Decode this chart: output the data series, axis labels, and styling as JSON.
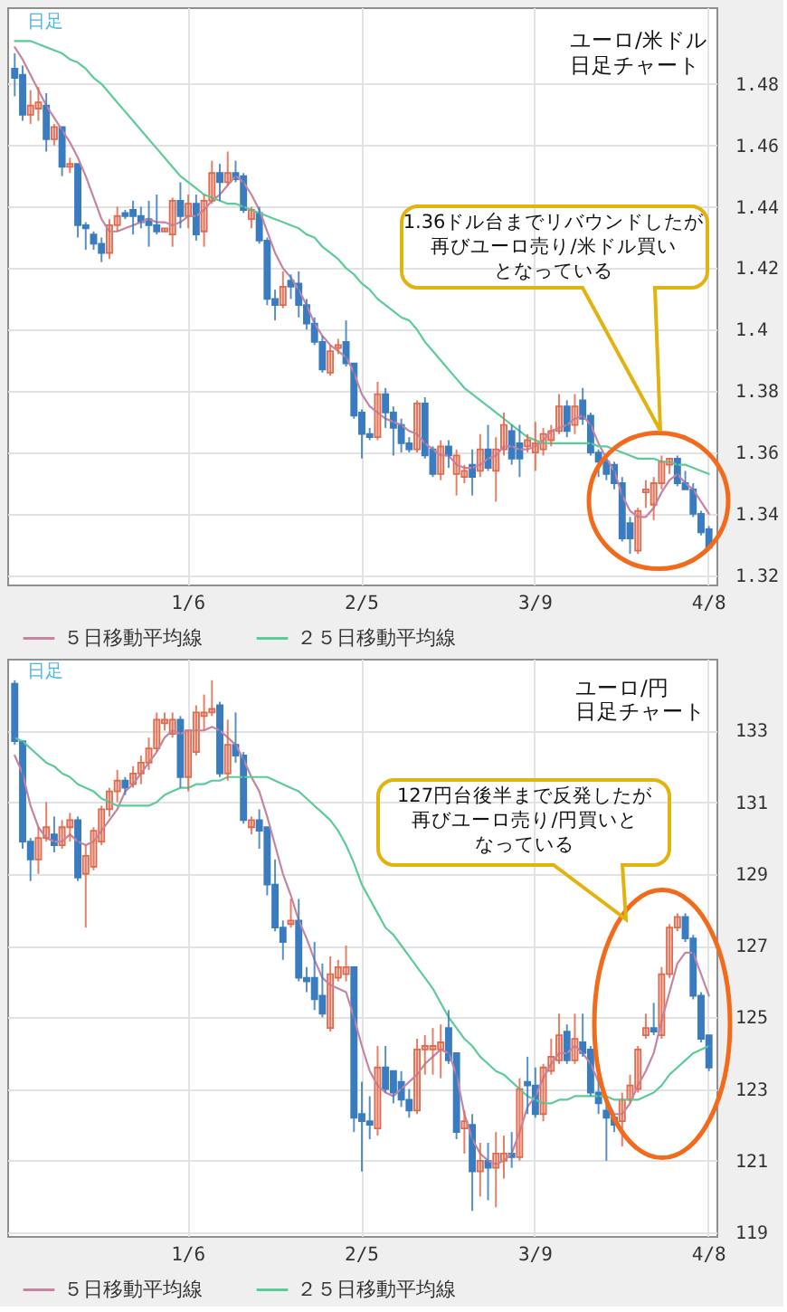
{
  "chart_data": [
    {
      "type": "candlestick",
      "title": "ユーロ/米ドル",
      "subtitle": "日足チャート",
      "categories": [
        null,
        null,
        null,
        null,
        null,
        null,
        null,
        null,
        null,
        null,
        null,
        null,
        null,
        null,
        null,
        null,
        null,
        null,
        null,
        null,
        null,
        null,
        "1/6",
        null,
        null,
        null,
        null,
        null,
        null,
        null,
        null,
        null,
        null,
        null,
        null,
        null,
        null,
        null,
        null,
        null,
        null,
        null,
        null,
        null,
        "2/5",
        null,
        null,
        null,
        null,
        null,
        null,
        null,
        null,
        null,
        null,
        null,
        null,
        null,
        null,
        null,
        null,
        null,
        null,
        null,
        null,
        null,
        "3/9",
        null,
        null,
        null,
        null,
        null,
        null,
        null,
        null,
        null,
        null,
        null,
        null,
        null,
        null,
        null,
        null,
        null,
        null,
        null,
        null,
        null,
        "4/8"
      ],
      "ohlc": [
        [
          1.485,
          1.49,
          1.476,
          1.482
        ],
        [
          1.483,
          1.486,
          1.468,
          1.47
        ],
        [
          1.47,
          1.478,
          1.467,
          1.473
        ],
        [
          1.472,
          1.479,
          1.468,
          1.474
        ],
        [
          1.473,
          1.477,
          1.458,
          1.462
        ],
        [
          1.462,
          1.467,
          1.46,
          1.466
        ],
        [
          1.466,
          1.466,
          1.45,
          1.453
        ],
        [
          1.453,
          1.456,
          1.451,
          1.454
        ],
        [
          1.454,
          1.454,
          1.43,
          1.434
        ],
        [
          1.434,
          1.435,
          1.426,
          1.433
        ],
        [
          1.431,
          1.432,
          1.426,
          1.428
        ],
        [
          1.428,
          1.43,
          1.422,
          1.425
        ],
        [
          1.425,
          1.436,
          1.423,
          1.434
        ],
        [
          1.434,
          1.44,
          1.432,
          1.437
        ],
        [
          1.438,
          1.439,
          1.436,
          1.437
        ],
        [
          1.439,
          1.442,
          1.431,
          1.437
        ],
        [
          1.437,
          1.44,
          1.433,
          1.435
        ],
        [
          1.436,
          1.442,
          1.427,
          1.434
        ],
        [
          1.434,
          1.444,
          1.431,
          1.432
        ],
        [
          1.432,
          1.433,
          1.432,
          1.433
        ],
        [
          1.431,
          1.443,
          1.427,
          1.442
        ],
        [
          1.442,
          1.448,
          1.433,
          1.437
        ],
        [
          1.437,
          1.444,
          1.433,
          1.441
        ],
        [
          1.441,
          1.444,
          1.429,
          1.431
        ],
        [
          1.432,
          1.444,
          1.427,
          1.442
        ],
        [
          1.442,
          1.455,
          1.441,
          1.451
        ],
        [
          1.451,
          1.454,
          1.442,
          1.448
        ],
        [
          1.448,
          1.458,
          1.447,
          1.451
        ],
        [
          1.451,
          1.455,
          1.448,
          1.449
        ],
        [
          1.45,
          1.451,
          1.438,
          1.439
        ],
        [
          1.436,
          1.44,
          1.433,
          1.439
        ],
        [
          1.438,
          1.44,
          1.428,
          1.429
        ],
        [
          1.429,
          1.43,
          1.408,
          1.41
        ],
        [
          1.41,
          1.413,
          1.403,
          1.408
        ],
        [
          1.408,
          1.419,
          1.407,
          1.414
        ],
        [
          1.416,
          1.418,
          1.41,
          1.414
        ],
        [
          1.415,
          1.419,
          1.404,
          1.408
        ],
        [
          1.408,
          1.41,
          1.4,
          1.402
        ],
        [
          1.402,
          1.404,
          1.395,
          1.396
        ],
        [
          1.396,
          1.398,
          1.386,
          1.387
        ],
        [
          1.386,
          1.395,
          1.385,
          1.393
        ],
        [
          1.394,
          1.397,
          1.392,
          1.395
        ],
        [
          1.396,
          1.403,
          1.388,
          1.389
        ],
        [
          1.389,
          1.389,
          1.371,
          1.372
        ],
        [
          1.373,
          1.374,
          1.358,
          1.366
        ],
        [
          1.366,
          1.368,
          1.364,
          1.365
        ],
        [
          1.365,
          1.383,
          1.364,
          1.379
        ],
        [
          1.379,
          1.381,
          1.368,
          1.373
        ],
        [
          1.373,
          1.375,
          1.359,
          1.368
        ],
        [
          1.369,
          1.371,
          1.36,
          1.363
        ],
        [
          1.363,
          1.365,
          1.36,
          1.361
        ],
        [
          1.361,
          1.377,
          1.36,
          1.376
        ],
        [
          1.376,
          1.378,
          1.358,
          1.359
        ],
        [
          1.361,
          1.362,
          1.352,
          1.353
        ],
        [
          1.353,
          1.364,
          1.351,
          1.362
        ],
        [
          1.362,
          1.364,
          1.355,
          1.359
        ],
        [
          1.353,
          1.361,
          1.346,
          1.359
        ],
        [
          1.352,
          1.356,
          1.35,
          1.354
        ],
        [
          1.356,
          1.361,
          1.346,
          1.352
        ],
        [
          1.354,
          1.366,
          1.352,
          1.361
        ],
        [
          1.361,
          1.369,
          1.354,
          1.355
        ],
        [
          1.354,
          1.365,
          1.344,
          1.361
        ],
        [
          1.361,
          1.373,
          1.359,
          1.369
        ],
        [
          1.367,
          1.369,
          1.356,
          1.358
        ],
        [
          1.363,
          1.369,
          1.352,
          1.358
        ],
        [
          1.362,
          1.366,
          1.36,
          1.364
        ],
        [
          1.36,
          1.37,
          1.354,
          1.363
        ],
        [
          1.361,
          1.368,
          1.359,
          1.366
        ],
        [
          1.364,
          1.369,
          1.362,
          1.367
        ],
        [
          1.367,
          1.379,
          1.366,
          1.375
        ],
        [
          1.375,
          1.377,
          1.365,
          1.367
        ],
        [
          1.369,
          1.379,
          1.366,
          1.375
        ],
        [
          1.377,
          1.381,
          1.369,
          1.371
        ],
        [
          1.372,
          1.373,
          1.359,
          1.36
        ],
        [
          1.36,
          1.361,
          1.352,
          1.357
        ],
        [
          1.357,
          1.358,
          1.351,
          1.353
        ],
        [
          1.356,
          1.357,
          1.348,
          1.35
        ],
        [
          1.35,
          1.352,
          1.331,
          1.332
        ],
        [
          1.337,
          1.339,
          1.327,
          1.332
        ],
        [
          1.328,
          1.342,
          1.327,
          1.341
        ],
        [
          1.347,
          1.351,
          1.342,
          1.348
        ],
        [
          1.343,
          1.352,
          1.338,
          1.35
        ],
        [
          1.35,
          1.359,
          1.348,
          1.357
        ],
        [
          1.356,
          1.358,
          1.353,
          1.358
        ],
        [
          1.358,
          1.359,
          1.349,
          1.35
        ],
        [
          1.35,
          1.354,
          1.348,
          1.348
        ],
        [
          1.348,
          1.35,
          1.339,
          1.34
        ],
        [
          1.34,
          1.341,
          1.333,
          1.334
        ],
        [
          1.335,
          1.336,
          1.328,
          1.329
        ]
      ],
      "colors": [
        "#3a7cc0",
        "#3a7cc0",
        "#e06a4e",
        "#e06a4e",
        "#3a7cc0",
        "#e06a4e",
        "#3a7cc0",
        "#e06a4e",
        "#3a7cc0",
        "#3a7cc0",
        "#3a7cc0",
        "#3a7cc0",
        "#e06a4e",
        "#e06a4e",
        "#3a7cc0",
        "#3a7cc0",
        "#3a7cc0",
        "#3a7cc0",
        "#3a7cc0",
        "#e06a4e",
        "#e06a4e",
        "#3a7cc0",
        "#e06a4e",
        "#3a7cc0",
        "#e06a4e",
        "#e06a4e",
        "#3a7cc0",
        "#e06a4e",
        "#3a7cc0",
        "#3a7cc0",
        "#e06a4e",
        "#3a7cc0",
        "#3a7cc0",
        "#3a7cc0",
        "#e06a4e",
        "#3a7cc0",
        "#3a7cc0",
        "#3a7cc0",
        "#3a7cc0",
        "#3a7cc0",
        "#e06a4e",
        "#e06a4e",
        "#3a7cc0",
        "#3a7cc0",
        "#3a7cc0",
        "#3a7cc0",
        "#e06a4e",
        "#3a7cc0",
        "#3a7cc0",
        "#3a7cc0",
        "#3a7cc0",
        "#e06a4e",
        "#3a7cc0",
        "#3a7cc0",
        "#e06a4e",
        "#3a7cc0",
        "#e06a4e",
        "#e06a4e",
        "#3a7cc0",
        "#e06a4e",
        "#3a7cc0",
        "#e06a4e",
        "#e06a4e",
        "#3a7cc0",
        "#3a7cc0",
        "#e06a4e",
        "#e06a4e",
        "#e06a4e",
        "#e06a4e",
        "#e06a4e",
        "#3a7cc0",
        "#e06a4e",
        "#3a7cc0",
        "#3a7cc0",
        "#3a7cc0",
        "#3a7cc0",
        "#3a7cc0",
        "#3a7cc0",
        "#3a7cc0",
        "#e06a4e",
        "#e06a4e",
        "#e06a4e",
        "#e06a4e",
        "#e06a4e",
        "#3a7cc0",
        "#3a7cc0",
        "#3a7cc0",
        "#3a7cc0",
        "#3a7cc0"
      ],
      "series": [
        {
          "name": "５日移動平均線",
          "type": "line",
          "color": "#c584a2",
          "values": [
            1.492,
            1.488,
            1.483,
            1.478,
            1.473,
            1.469,
            1.465,
            1.461,
            1.456,
            1.45,
            1.443,
            1.436,
            1.432,
            1.432,
            1.433,
            1.434,
            1.435,
            1.436,
            1.435,
            1.435,
            1.434,
            1.435,
            1.437,
            1.437,
            1.439,
            1.442,
            1.444,
            1.447,
            1.45,
            1.448,
            1.444,
            1.439,
            1.432,
            1.425,
            1.42,
            1.417,
            1.413,
            1.408,
            1.402,
            1.398,
            1.395,
            1.393,
            1.391,
            1.386,
            1.379,
            1.375,
            1.373,
            1.371,
            1.37,
            1.369,
            1.367,
            1.366,
            1.363,
            1.361,
            1.359,
            1.359,
            1.356,
            1.355,
            1.355,
            1.356,
            1.358,
            1.359,
            1.362,
            1.362,
            1.361,
            1.361,
            1.362,
            1.364,
            1.367,
            1.368,
            1.369,
            1.371,
            1.372,
            1.369,
            1.363,
            1.358,
            1.354,
            1.346,
            1.341,
            1.339,
            1.339,
            1.342,
            1.347,
            1.351,
            1.353,
            1.35,
            1.348,
            1.344,
            1.34
          ]
        },
        {
          "name": "２５日移動平均線",
          "type": "line",
          "color": "#5ccb98",
          "values": [
            1.494,
            1.494,
            1.494,
            1.493,
            1.492,
            1.491,
            1.49,
            1.488,
            1.487,
            1.485,
            1.482,
            1.48,
            1.477,
            1.474,
            1.471,
            1.468,
            1.465,
            1.462,
            1.459,
            1.456,
            1.453,
            1.45,
            1.448,
            1.446,
            1.444,
            1.443,
            1.442,
            1.441,
            1.441,
            1.44,
            1.439,
            1.438,
            1.437,
            1.436,
            1.435,
            1.434,
            1.433,
            1.431,
            1.43,
            1.427,
            1.425,
            1.423,
            1.42,
            1.418,
            1.415,
            1.413,
            1.41,
            1.408,
            1.406,
            1.404,
            1.403,
            1.4,
            1.396,
            1.393,
            1.39,
            1.387,
            1.384,
            1.381,
            1.379,
            1.377,
            1.375,
            1.373,
            1.371,
            1.369,
            1.367,
            1.365,
            1.364,
            1.363,
            1.363,
            1.363,
            1.363,
            1.363,
            1.363,
            1.363,
            1.362,
            1.362,
            1.361,
            1.36,
            1.359,
            1.358,
            1.358,
            1.358,
            1.357,
            1.357,
            1.356,
            1.356,
            1.355,
            1.354,
            1.353
          ]
        }
      ],
      "ylim": [
        1.317,
        1.505
      ],
      "yticks": [
        1.32,
        1.34,
        1.36,
        1.38,
        1.4,
        1.42,
        1.44,
        1.46,
        1.48
      ],
      "grid": true,
      "legend": "bottom",
      "annotations": [
        "日足",
        "1.36ドル台までリバウンドしたが再びユーロ売り/米ドル買いとなっている"
      ]
    },
    {
      "type": "candlestick",
      "title": "ユーロ/円",
      "subtitle": "日足チャート",
      "categories": [
        null,
        null,
        null,
        null,
        null,
        null,
        null,
        null,
        null,
        null,
        null,
        null,
        null,
        null,
        null,
        null,
        null,
        null,
        null,
        null,
        null,
        null,
        "1/6",
        null,
        null,
        null,
        null,
        null,
        null,
        null,
        null,
        null,
        null,
        null,
        null,
        null,
        null,
        null,
        null,
        null,
        null,
        null,
        null,
        null,
        "2/5",
        null,
        null,
        null,
        null,
        null,
        null,
        null,
        null,
        null,
        null,
        null,
        null,
        null,
        null,
        null,
        null,
        null,
        null,
        null,
        null,
        null,
        "3/9",
        null,
        null,
        null,
        null,
        null,
        null,
        null,
        null,
        null,
        null,
        null,
        null,
        null,
        null,
        null,
        null,
        null,
        null,
        null,
        null,
        null,
        "4/8"
      ],
      "ohlc": [
        [
          134.3,
          134.4,
          132.6,
          132.7
        ],
        [
          132.7,
          132.7,
          129.7,
          129.9
        ],
        [
          129.9,
          130.0,
          128.8,
          129.4
        ],
        [
          129.4,
          130.3,
          129.0,
          130.0
        ],
        [
          130.0,
          131.0,
          129.9,
          130.3
        ],
        [
          130.1,
          130.6,
          129.6,
          129.8
        ],
        [
          129.8,
          130.5,
          129.7,
          130.3
        ],
        [
          130.3,
          130.7,
          129.9,
          130.5
        ],
        [
          130.5,
          130.6,
          128.8,
          128.9
        ],
        [
          129.0,
          129.8,
          127.5,
          129.5
        ],
        [
          129.2,
          130.3,
          129.1,
          130.2
        ],
        [
          129.9,
          130.9,
          129.8,
          130.8
        ],
        [
          130.8,
          131.4,
          130.6,
          131.3
        ],
        [
          131.3,
          131.9,
          131.0,
          131.6
        ],
        [
          131.6,
          131.7,
          131.2,
          131.4
        ],
        [
          131.5,
          132.0,
          131.4,
          131.8
        ],
        [
          131.8,
          132.3,
          131.5,
          132.1
        ],
        [
          132.1,
          132.8,
          131.9,
          132.5
        ],
        [
          132.5,
          133.5,
          132.4,
          133.3
        ],
        [
          133.2,
          133.5,
          133.0,
          133.3
        ],
        [
          132.9,
          133.5,
          132.8,
          133.3
        ],
        [
          133.3,
          133.4,
          131.4,
          131.7
        ],
        [
          131.7,
          133.0,
          131.3,
          133.0
        ],
        [
          132.4,
          133.7,
          132.3,
          133.5
        ],
        [
          133.4,
          134.0,
          133.0,
          133.5
        ],
        [
          133.5,
          134.4,
          133.4,
          133.6
        ],
        [
          133.7,
          133.8,
          131.7,
          131.8
        ],
        [
          131.8,
          133.3,
          131.6,
          132.6
        ],
        [
          132.6,
          133.5,
          132.1,
          132.3
        ],
        [
          132.3,
          132.4,
          130.4,
          130.5
        ],
        [
          130.3,
          130.6,
          130.1,
          130.5
        ],
        [
          130.5,
          130.8,
          129.7,
          130.2
        ],
        [
          130.3,
          130.3,
          128.4,
          128.7
        ],
        [
          128.7,
          129.4,
          127.4,
          127.5
        ],
        [
          127.5,
          127.7,
          126.6,
          127.1
        ],
        [
          127.6,
          128.3,
          127.5,
          127.7
        ],
        [
          127.7,
          128.3,
          126.0,
          126.1
        ],
        [
          126.1,
          126.4,
          125.7,
          126.0
        ],
        [
          126.1,
          127.1,
          125.2,
          125.5
        ],
        [
          125.6,
          126.5,
          125.0,
          125.1
        ],
        [
          124.7,
          126.7,
          124.6,
          126.2
        ],
        [
          126.1,
          126.6,
          126.0,
          126.4
        ],
        [
          126.2,
          127.0,
          126.0,
          126.4
        ],
        [
          126.4,
          126.4,
          121.8,
          122.2
        ],
        [
          122.3,
          123.2,
          120.7,
          122.1
        ],
        [
          122.1,
          122.8,
          121.6,
          122.0
        ],
        [
          121.9,
          124.2,
          121.7,
          123.6
        ],
        [
          123.6,
          124.2,
          122.9,
          123.0
        ],
        [
          123.5,
          123.5,
          122.6,
          122.9
        ],
        [
          123.2,
          123.5,
          122.5,
          122.7
        ],
        [
          122.7,
          123.0,
          122.2,
          122.4
        ],
        [
          122.4,
          124.4,
          122.3,
          124.1
        ],
        [
          124.1,
          124.5,
          123.4,
          124.2
        ],
        [
          124.1,
          124.7,
          123.4,
          124.2
        ],
        [
          124.1,
          124.8,
          123.3,
          124.3
        ],
        [
          124.7,
          125.2,
          123.7,
          123.8
        ],
        [
          124.0,
          124.0,
          121.6,
          121.8
        ],
        [
          121.9,
          122.4,
          121.2,
          122.1
        ],
        [
          122.0,
          122.3,
          119.6,
          120.7
        ],
        [
          120.7,
          121.5,
          120.0,
          121.0
        ],
        [
          121.0,
          121.5,
          119.9,
          120.8
        ],
        [
          120.8,
          121.8,
          119.7,
          121.2
        ],
        [
          121.0,
          121.7,
          120.5,
          121.2
        ],
        [
          121.2,
          121.8,
          120.8,
          121.1
        ],
        [
          121.1,
          123.3,
          121.0,
          123.0
        ],
        [
          123.2,
          123.9,
          122.3,
          123.1
        ],
        [
          123.1,
          123.6,
          122.2,
          122.3
        ],
        [
          122.3,
          123.7,
          122.1,
          123.6
        ],
        [
          123.5,
          124.4,
          123.4,
          123.9
        ],
        [
          123.8,
          125.1,
          123.7,
          124.5
        ],
        [
          124.6,
          124.8,
          123.7,
          123.8
        ],
        [
          123.8,
          125.1,
          123.7,
          124.4
        ],
        [
          124.3,
          125.1,
          123.9,
          124.0
        ],
        [
          124.1,
          124.2,
          122.8,
          122.9
        ],
        [
          122.9,
          123.4,
          122.3,
          122.6
        ],
        [
          122.4,
          122.7,
          121.0,
          122.2
        ],
        [
          122.2,
          122.3,
          121.8,
          122.0
        ],
        [
          122.1,
          122.9,
          121.4,
          122.7
        ],
        [
          122.7,
          123.4,
          122.6,
          123.1
        ],
        [
          123.0,
          124.2,
          122.9,
          124.1
        ],
        [
          124.5,
          125.1,
          124.4,
          124.7
        ],
        [
          124.7,
          125.4,
          124.5,
          124.6
        ],
        [
          124.5,
          126.4,
          124.4,
          126.2
        ],
        [
          126.2,
          127.6,
          126.1,
          127.5
        ],
        [
          127.5,
          127.9,
          127.4,
          127.8
        ],
        [
          127.8,
          127.9,
          127.1,
          127.2
        ],
        [
          127.2,
          127.3,
          125.5,
          125.6
        ],
        [
          125.6,
          125.7,
          124.3,
          124.4
        ],
        [
          124.5,
          124.5,
          123.5,
          123.6
        ]
      ],
      "colors": [
        "#3a7cc0",
        "#3a7cc0",
        "#3a7cc0",
        "#e06a4e",
        "#e06a4e",
        "#3a7cc0",
        "#e06a4e",
        "#e06a4e",
        "#3a7cc0",
        "#e06a4e",
        "#e06a4e",
        "#e06a4e",
        "#e06a4e",
        "#e06a4e",
        "#3a7cc0",
        "#e06a4e",
        "#e06a4e",
        "#e06a4e",
        "#e06a4e",
        "#e06a4e",
        "#e06a4e",
        "#3a7cc0",
        "#e06a4e",
        "#e06a4e",
        "#e06a4e",
        "#e06a4e",
        "#3a7cc0",
        "#e06a4e",
        "#3a7cc0",
        "#3a7cc0",
        "#e06a4e",
        "#3a7cc0",
        "#3a7cc0",
        "#3a7cc0",
        "#3a7cc0",
        "#e06a4e",
        "#3a7cc0",
        "#3a7cc0",
        "#3a7cc0",
        "#3a7cc0",
        "#e06a4e",
        "#e06a4e",
        "#e06a4e",
        "#3a7cc0",
        "#3a7cc0",
        "#3a7cc0",
        "#e06a4e",
        "#3a7cc0",
        "#3a7cc0",
        "#3a7cc0",
        "#3a7cc0",
        "#e06a4e",
        "#e06a4e",
        "#e06a4e",
        "#e06a4e",
        "#3a7cc0",
        "#3a7cc0",
        "#e06a4e",
        "#3a7cc0",
        "#e06a4e",
        "#3a7cc0",
        "#e06a4e",
        "#e06a4e",
        "#3a7cc0",
        "#e06a4e",
        "#3a7cc0",
        "#3a7cc0",
        "#e06a4e",
        "#e06a4e",
        "#e06a4e",
        "#3a7cc0",
        "#e06a4e",
        "#3a7cc0",
        "#3a7cc0",
        "#3a7cc0",
        "#3a7cc0",
        "#3a7cc0",
        "#e06a4e",
        "#e06a4e",
        "#e06a4e",
        "#e06a4e",
        "#3a7cc0",
        "#e06a4e",
        "#e06a4e",
        "#e06a4e",
        "#3a7cc0",
        "#3a7cc0",
        "#3a7cc0",
        "#3a7cc0"
      ],
      "series": [
        {
          "name": "５日移動平均線",
          "type": "line",
          "color": "#c584a2",
          "values": [
            132.3,
            131.8,
            130.9,
            130.3,
            130.0,
            129.9,
            129.9,
            130.1,
            129.9,
            129.8,
            129.9,
            130.2,
            130.5,
            130.8,
            131.3,
            131.5,
            131.8,
            132.1,
            132.4,
            132.8,
            133.0,
            132.9,
            133.0,
            133.0,
            133.0,
            133.1,
            133.0,
            132.8,
            132.6,
            132.2,
            131.7,
            131.3,
            130.6,
            129.8,
            129.0,
            128.4,
            127.7,
            127.2,
            126.6,
            126.1,
            125.9,
            125.8,
            125.7,
            125.0,
            124.2,
            123.5,
            123.1,
            122.9,
            122.8,
            123.0,
            123.2,
            123.4,
            123.7,
            123.9,
            124.1,
            124.0,
            123.4,
            122.3,
            121.6,
            121.2,
            121.0,
            120.9,
            121.0,
            121.2,
            121.8,
            122.5,
            122.8,
            123.3,
            123.7,
            124.0,
            124.0,
            124.2,
            124.0,
            123.7,
            123.2,
            122.7,
            122.3,
            122.3,
            122.6,
            123.1,
            123.5,
            124.0,
            124.9,
            125.7,
            126.5,
            126.8,
            126.8,
            126.2,
            125.6
          ]
        },
        {
          "name": "２５日移動平均線",
          "type": "line",
          "color": "#5ccb98",
          "values": [
            132.8,
            132.7,
            132.5,
            132.3,
            132.1,
            132.0,
            131.8,
            131.7,
            131.5,
            131.4,
            131.3,
            131.1,
            131.0,
            130.9,
            130.9,
            130.9,
            130.9,
            130.9,
            131.0,
            131.2,
            131.3,
            131.4,
            131.4,
            131.5,
            131.5,
            131.6,
            131.6,
            131.7,
            131.7,
            131.7,
            131.7,
            131.7,
            131.7,
            131.6,
            131.5,
            131.4,
            131.3,
            131.1,
            130.9,
            130.7,
            130.5,
            130.2,
            129.8,
            129.3,
            128.7,
            128.3,
            127.9,
            127.5,
            127.3,
            127.0,
            126.7,
            126.4,
            126.1,
            125.8,
            125.4,
            125.0,
            124.7,
            124.4,
            124.2,
            123.9,
            123.7,
            123.5,
            123.4,
            123.2,
            123.0,
            122.8,
            122.7,
            122.6,
            122.6,
            122.7,
            122.7,
            122.8,
            122.8,
            122.8,
            122.8,
            122.8,
            122.7,
            122.7,
            122.7,
            122.7,
            122.8,
            122.9,
            123.1,
            123.4,
            123.6,
            123.8,
            124.0,
            124.1,
            124.2
          ]
        }
      ],
      "ylim": [
        118.9,
        135.0
      ],
      "yticks": [
        119,
        121,
        123,
        125,
        127,
        129,
        131,
        133
      ],
      "grid": true,
      "legend": "bottom",
      "annotations": [
        "日足",
        "127円台後半まで反発したが再びユーロ売り/円買いとなっている"
      ]
    }
  ]
}
